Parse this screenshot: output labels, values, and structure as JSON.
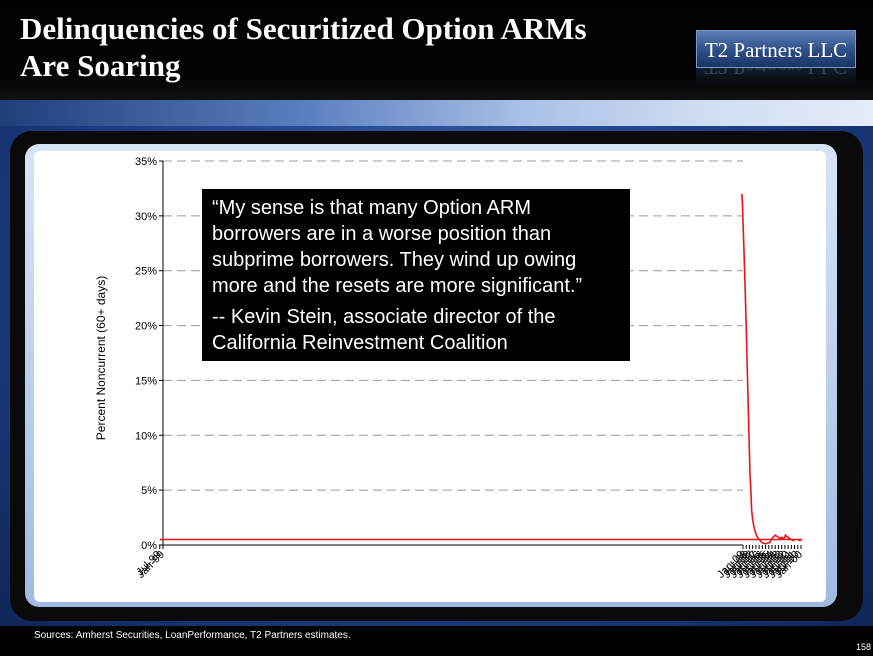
{
  "slide": {
    "title_line1": "Delinquencies of Securitized Option ARMs",
    "title_line2": "Are Soaring",
    "logo_text": "T2 Partners LLC",
    "source": "Sources: Amherst Securities, LoanPerformance, T2 Partners estimates.",
    "page_number": "158"
  },
  "quote": {
    "text": "“My sense is that many Option ARM borrowers are in a worse position than subprime borrowers.  They wind up owing more and the resets are more significant.”",
    "attribution": "-- Kevin Stein, associate director of the California Reinvestment Coalition"
  },
  "chart_data": {
    "type": "line",
    "title": "",
    "xlabel": "",
    "ylabel": "Percent Noncurrent (60+ days)",
    "ylim": [
      0,
      35
    ],
    "y_ticks": [
      0,
      5,
      10,
      15,
      20,
      25,
      30,
      35
    ],
    "y_tick_labels": [
      "0%",
      "5%",
      "10%",
      "15%",
      "20%",
      "25%",
      "30%",
      "35%"
    ],
    "x_tick_labels": [
      "Jan-99",
      "Jul-99",
      "Jan-00",
      "Jul-00",
      "Jan-01",
      "Jul-01",
      "Jan-02",
      "Jul-02",
      "Jan-03",
      "Jul-03",
      "Jan-04",
      "Jul-04",
      "Jan-05",
      "Jul-05",
      "Jan-06",
      "Jul-06",
      "Jan-07",
      "Jul-07",
      "Jan-08",
      "Jul-08",
      "Jan-09"
    ],
    "grid": "horizontal-dashed",
    "series_color": "#e8141b",
    "series": [
      {
        "x": [
          "Jan-99",
          "Mar-99",
          "Jul-99",
          "Jan-00",
          "Mar-00",
          "Jul-00",
          "Jan-01",
          "Mar-01",
          "Jul-01",
          "Jan-02",
          "Apr-02",
          "Jun-02",
          "Jul-02",
          "Oct-02",
          "Jan-03",
          "Mar-03",
          "Jul-03",
          "Jan-04",
          "Mar-04",
          "Jul-04",
          "Oct-04",
          "Jan-05",
          "Jul-05",
          "Jan-06",
          "Jul-06",
          "Oct-06",
          "Jan-07",
          "Apr-07",
          "Jul-07",
          "Sep-07",
          "Oct-07",
          "Dec-07",
          "Jan-08",
          "Mar-08",
          "May-08",
          "Jul-08",
          "Sep-08",
          "Nov-08",
          "Jan-09",
          "Feb-09",
          "Mar-09"
        ],
        "values": [
          0.4,
          0.5,
          0.5,
          0.5,
          0.4,
          0.5,
          0.5,
          0.4,
          0.5,
          0.7,
          0.8,
          0.9,
          0.7,
          0.6,
          0.7,
          0.6,
          0.7,
          0.9,
          0.8,
          0.6,
          0.3,
          0.2,
          0.1,
          0.2,
          0.5,
          0.7,
          1.0,
          1.5,
          2.3,
          3.2,
          4.5,
          6.5,
          8.5,
          12.0,
          16.0,
          20.0,
          23.5,
          26.5,
          29.5,
          31.0,
          32.0
        ]
      }
    ]
  }
}
